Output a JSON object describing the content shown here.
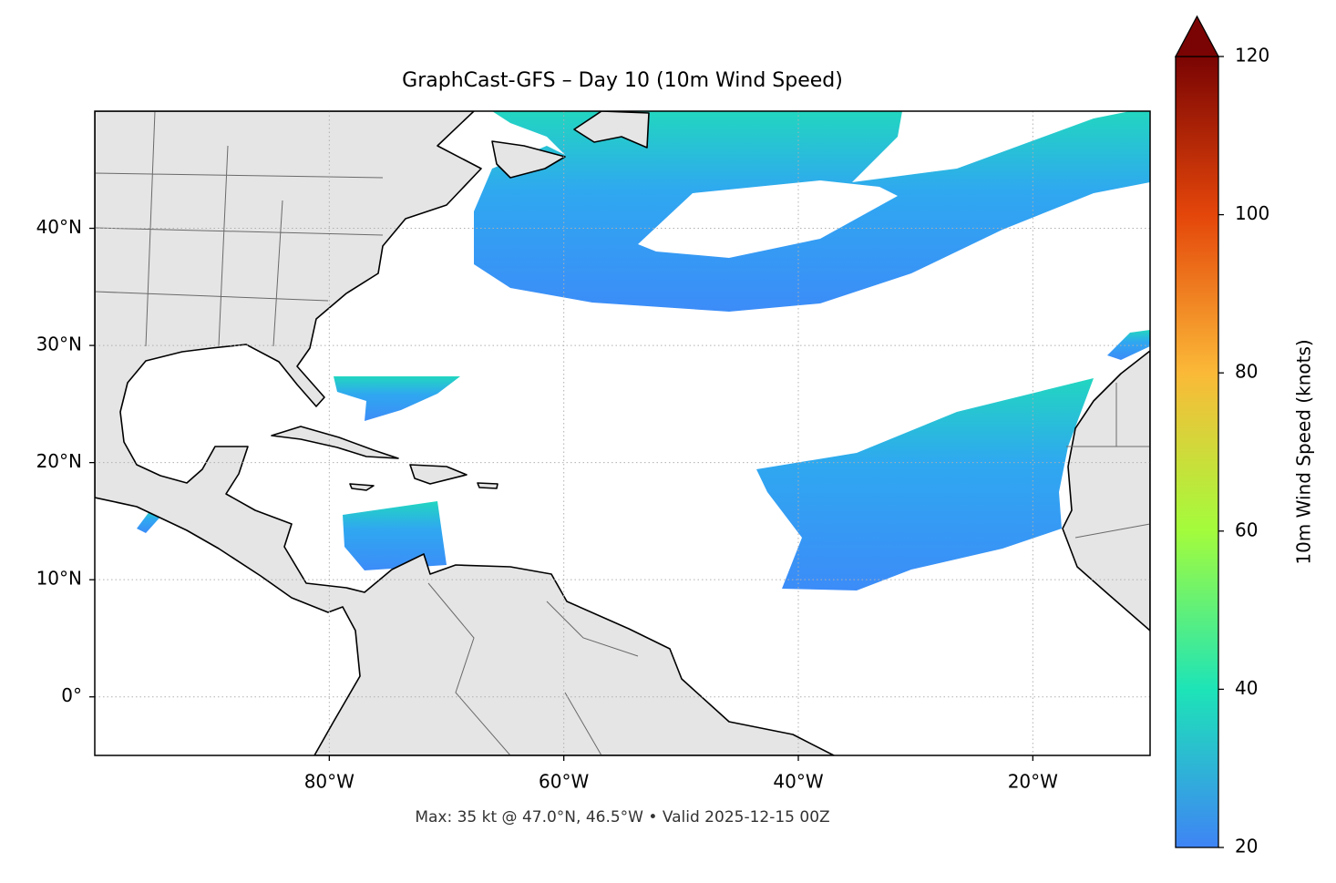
{
  "chart_data": {
    "type": "map",
    "title": "GraphCast-GFS – Day 10 (10m Wind Speed)",
    "footer": "Max: 35 kt @ 47.0°N, 46.5°W • Valid 2025-12-15 00Z",
    "xlim": [
      -100,
      -10
    ],
    "ylim": [
      -5,
      50
    ],
    "xticks": [
      {
        "value": -80,
        "label": "80°W"
      },
      {
        "value": -60,
        "label": "60°W"
      },
      {
        "value": -40,
        "label": "40°W"
      },
      {
        "value": -20,
        "label": "20°W"
      }
    ],
    "yticks": [
      {
        "value": 0,
        "label": "0°"
      },
      {
        "value": 10,
        "label": "10°N"
      },
      {
        "value": 20,
        "label": "20°N"
      },
      {
        "value": 30,
        "label": "30°N"
      },
      {
        "value": 40,
        "label": "40°N"
      }
    ],
    "grid": true,
    "colorbar": {
      "label": "10m Wind Speed (knots)",
      "lim": [
        20,
        120
      ],
      "ticks": [
        20,
        40,
        60,
        80,
        100,
        120
      ],
      "extend": "max",
      "colors": [
        "#3f84f5",
        "#1de4b7",
        "#a3fc3c",
        "#fbb938",
        "#e4460a",
        "#7a0403"
      ]
    }
  }
}
